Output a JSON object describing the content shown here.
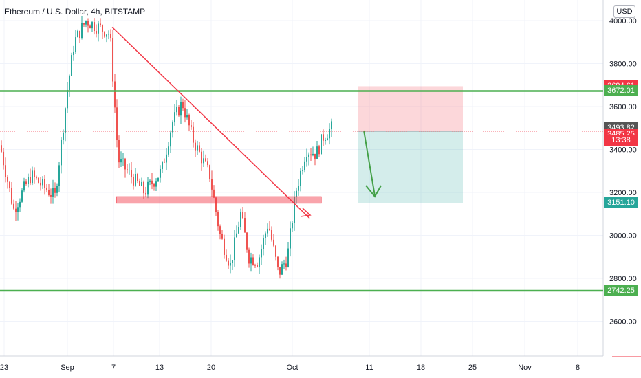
{
  "chart_data": {
    "type": "candlestick",
    "title": "Ethereum / U.S. Dollar, 4h, BITSTAMP",
    "currency": "USD",
    "y_ticks": [
      "4000.00",
      "3800.00",
      "3600.00",
      "3400.00",
      "3200.00",
      "3000.00",
      "2800.00",
      "2600.00"
    ],
    "x_ticks": [
      "23",
      "Sep",
      "7",
      "13",
      "20",
      "Oct",
      "11",
      "18",
      "25",
      "Nov",
      "8"
    ],
    "candle_color_up": "#26a69a",
    "candle_color_down": "#ef5350",
    "price_labels": [
      {
        "value": 3694.61,
        "text": "3694.61",
        "color": "#f23645"
      },
      {
        "value": 3672.01,
        "text": "3672.01",
        "color": "#4caf50"
      },
      {
        "value": 3493.82,
        "text": "3493.82",
        "color": "#555555"
      },
      {
        "value": 3485.25,
        "text": "3485.25",
        "color": "#f23645"
      },
      {
        "value": 3151.1,
        "text": "3151.10",
        "color": "#26a69a"
      },
      {
        "value": 2742.25,
        "text": "2742.25",
        "color": "#4caf50"
      }
    ],
    "countdown": "13:38",
    "horizontal_levels": [
      {
        "value": 3672.01,
        "color": "#4caf50"
      },
      {
        "value": 2742.25,
        "color": "#4caf50"
      }
    ],
    "support_zone": {
      "from": 3150,
      "to": 3180,
      "color": "#f23645"
    },
    "trendline": {
      "from": {
        "date": "Sep 7",
        "price": 3970
      },
      "to": {
        "date": "Oct 4",
        "price": 3080
      },
      "color": "#f23645"
    },
    "position": {
      "entry": 3485.25,
      "stop": 3694.61,
      "target": 3151.1,
      "direction": "short"
    }
  },
  "ui": {
    "currency_label": "USD"
  }
}
